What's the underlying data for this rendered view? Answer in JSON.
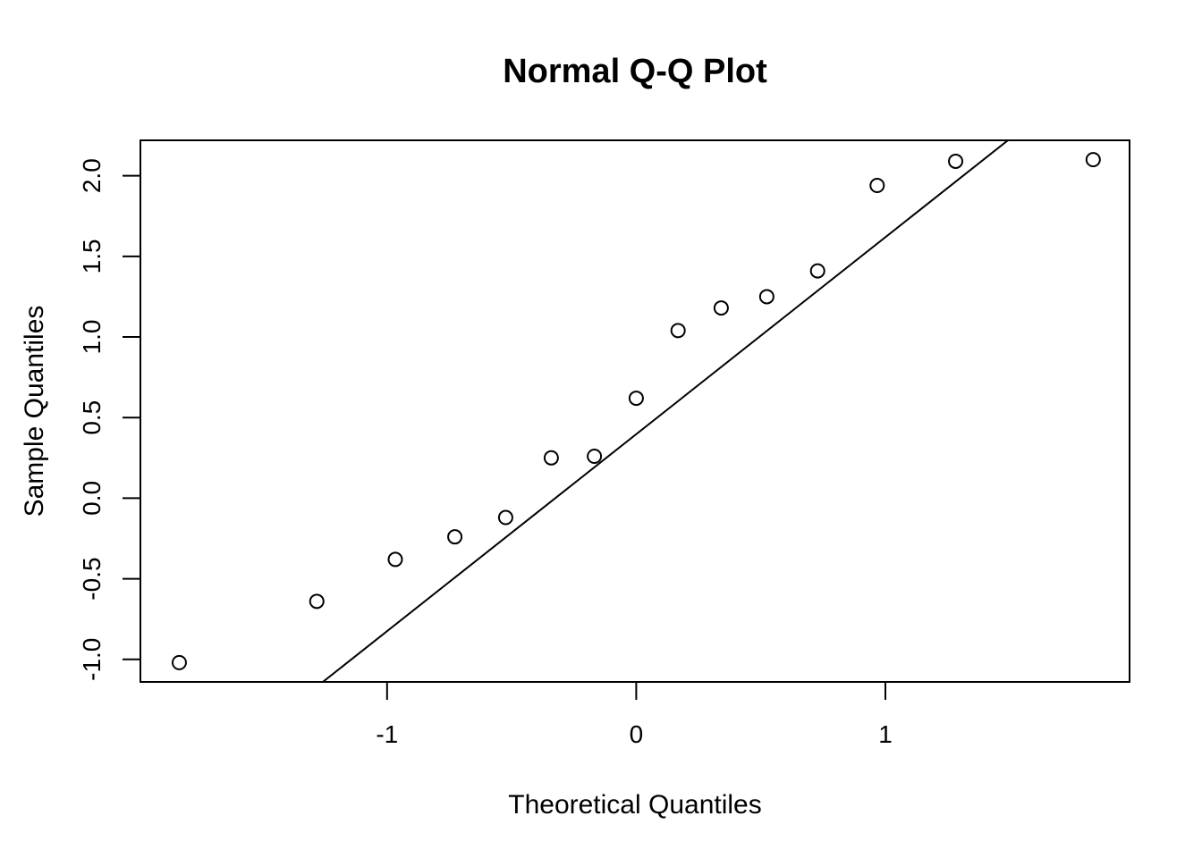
{
  "chart_data": {
    "type": "scatter",
    "title": "Normal Q-Q Plot",
    "xlabel": "Theoretical Quantiles",
    "ylabel": "Sample Quantiles",
    "xlim": [
      -1.99,
      1.98
    ],
    "ylim": [
      -1.14,
      2.22
    ],
    "x_ticks": [
      {
        "value": -1,
        "label": "-1"
      },
      {
        "value": 0,
        "label": "0"
      },
      {
        "value": 1,
        "label": "1"
      }
    ],
    "y_ticks": [
      {
        "value": -1.0,
        "label": "-1.0"
      },
      {
        "value": -0.5,
        "label": "-0.5"
      },
      {
        "value": 0.0,
        "label": "0.0"
      },
      {
        "value": 0.5,
        "label": "0.5"
      },
      {
        "value": 1.0,
        "label": "1.0"
      },
      {
        "value": 1.5,
        "label": "1.5"
      },
      {
        "value": 2.0,
        "label": "2.0"
      }
    ],
    "points": {
      "x": [
        -1.834,
        -1.282,
        -0.967,
        -0.728,
        -0.524,
        -0.341,
        -0.168,
        0.0,
        0.168,
        0.341,
        0.524,
        0.728,
        0.967,
        1.282,
        1.834
      ],
      "y": [
        -1.02,
        -0.64,
        -0.38,
        -0.24,
        -0.12,
        0.25,
        0.26,
        0.62,
        1.04,
        1.18,
        1.25,
        1.41,
        1.94,
        2.09,
        2.1
      ]
    },
    "reference_line": {
      "intercept": 0.397,
      "slope": 1.222
    },
    "marker": "open-circle",
    "grid": false,
    "legend": "none",
    "colors": {
      "marks": "#000000",
      "background": "#ffffff"
    }
  }
}
